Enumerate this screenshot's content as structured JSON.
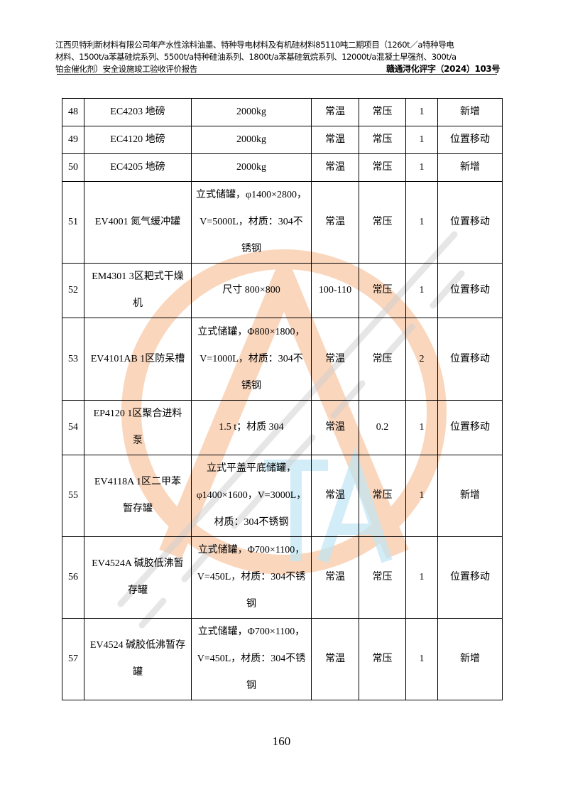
{
  "header": {
    "title_lines": [
      "江西贝特利新材料有限公司年产水性涂料油墨、特种导电材料及有机硅材料85110吨二期项目（1260t／a特种导电",
      "材料、1500t/a苯基硅烷系列、5500t/a特种硅油系列、1800t/a苯基硅氧烷系列、12000t/a混凝土早强剂、300t/a",
      "铂金催化剂）安全设施竣工验收评价报告"
    ],
    "doc_number": "赣通浔化评字（2024）103号"
  },
  "table": {
    "rows": [
      {
        "no": "48",
        "name": [
          "EC4203  地磅"
        ],
        "spec": [
          "2000kg"
        ],
        "temp": [
          "常温"
        ],
        "pressure": [
          "常压"
        ],
        "qty": "1",
        "remark": "新增"
      },
      {
        "no": "49",
        "name": [
          "EC4120  地磅"
        ],
        "spec": [
          "2000kg"
        ],
        "temp": [
          "常温"
        ],
        "pressure": [
          "常压"
        ],
        "qty": "1",
        "remark": "位置移动"
      },
      {
        "no": "50",
        "name": [
          "EC4205  地磅"
        ],
        "spec": [
          "2000kg"
        ],
        "temp": [
          "常温"
        ],
        "pressure": [
          "常压"
        ],
        "qty": "1",
        "remark": "新增"
      },
      {
        "no": "51",
        "name": [
          "EV4001  氮气缓冲罐"
        ],
        "spec": [
          "立式储罐，φ1400×2800，",
          "V=5000L，材质：304不",
          "锈钢"
        ],
        "temp": [
          "常温"
        ],
        "pressure": [
          "常压"
        ],
        "qty": "1",
        "remark": "位置移动"
      },
      {
        "no": "52",
        "name": [
          "EM4301 3区耙式干燥",
          "机"
        ],
        "spec": [
          "尺寸 800×800"
        ],
        "temp": [
          "100-110"
        ],
        "pressure": [
          "常压"
        ],
        "qty": "1",
        "remark": "位置移动"
      },
      {
        "no": "53",
        "name": [
          "EV4101AB 1区防呆槽"
        ],
        "spec": [
          "立式储罐，Φ800×1800，",
          "V=1000L，材质：304不",
          "锈钢"
        ],
        "temp": [
          "常温"
        ],
        "pressure": [
          "常压"
        ],
        "qty": "2",
        "remark": "位置移动"
      },
      {
        "no": "54",
        "name": [
          "EP4120 1区聚合进料",
          "泵"
        ],
        "spec": [
          "1.5 t；材质 304"
        ],
        "temp": [
          "常温"
        ],
        "pressure": [
          "0.2"
        ],
        "qty": "1",
        "remark": "位置移动"
      },
      {
        "no": "55",
        "name": [
          "EV4118A 1区二甲苯",
          "暂存罐"
        ],
        "spec": [
          "立式平盖平底储罐，",
          "φ1400×1600，V=3000L，",
          "材质：304不锈钢"
        ],
        "temp": [
          "常温"
        ],
        "pressure": [
          "常压"
        ],
        "qty": "1",
        "remark": "新增"
      },
      {
        "no": "56",
        "name": [
          "EV4524A 碱胶低沸暂",
          "存罐"
        ],
        "spec": [
          "立式储罐，Φ700×1100，",
          "V=450L，材质：304不锈",
          "钢"
        ],
        "temp": [
          "常温"
        ],
        "pressure": [
          "常压"
        ],
        "qty": "1",
        "remark": "位置移动"
      },
      {
        "no": "57",
        "name": [
          "EV4524 碱胶低沸暂存",
          "罐"
        ],
        "spec": [
          "立式储罐，Φ700×1100，",
          "V=450L，材质：304不锈",
          "钢"
        ],
        "temp": [
          "常温"
        ],
        "pressure": [
          "常压"
        ],
        "qty": "1",
        "remark": "新增"
      }
    ]
  },
  "page_number": "160",
  "watermark": {
    "circle_color": "#f9c9a8",
    "letter_color": "#bfe6f5",
    "text_color": "#cfcfcf"
  }
}
